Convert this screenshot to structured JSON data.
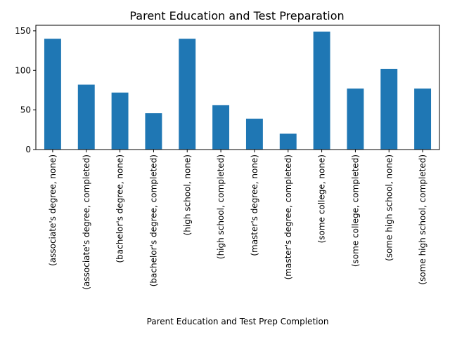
{
  "chart_data": {
    "type": "bar",
    "title": "Parent Education and Test Preparation",
    "xlabel": "Parent Education and Test Prep Completion",
    "ylabel": "",
    "ylim": [
      0,
      157
    ],
    "yticks": [
      0,
      50,
      100,
      150
    ],
    "grid": false,
    "bar_color": "#1f77b4",
    "categories": [
      "(associate's degree, none)",
      "(associate's degree, completed)",
      "(bachelor's degree, none)",
      "(bachelor's degree, completed)",
      "(high school, none)",
      "(high school, completed)",
      "(master's degree, none)",
      "(master's degree, completed)",
      "(some college, none)",
      "(some college, completed)",
      "(some high school, none)",
      "(some high school, completed)"
    ],
    "values": [
      140,
      82,
      72,
      46,
      140,
      56,
      39,
      20,
      149,
      77,
      102,
      77
    ]
  }
}
